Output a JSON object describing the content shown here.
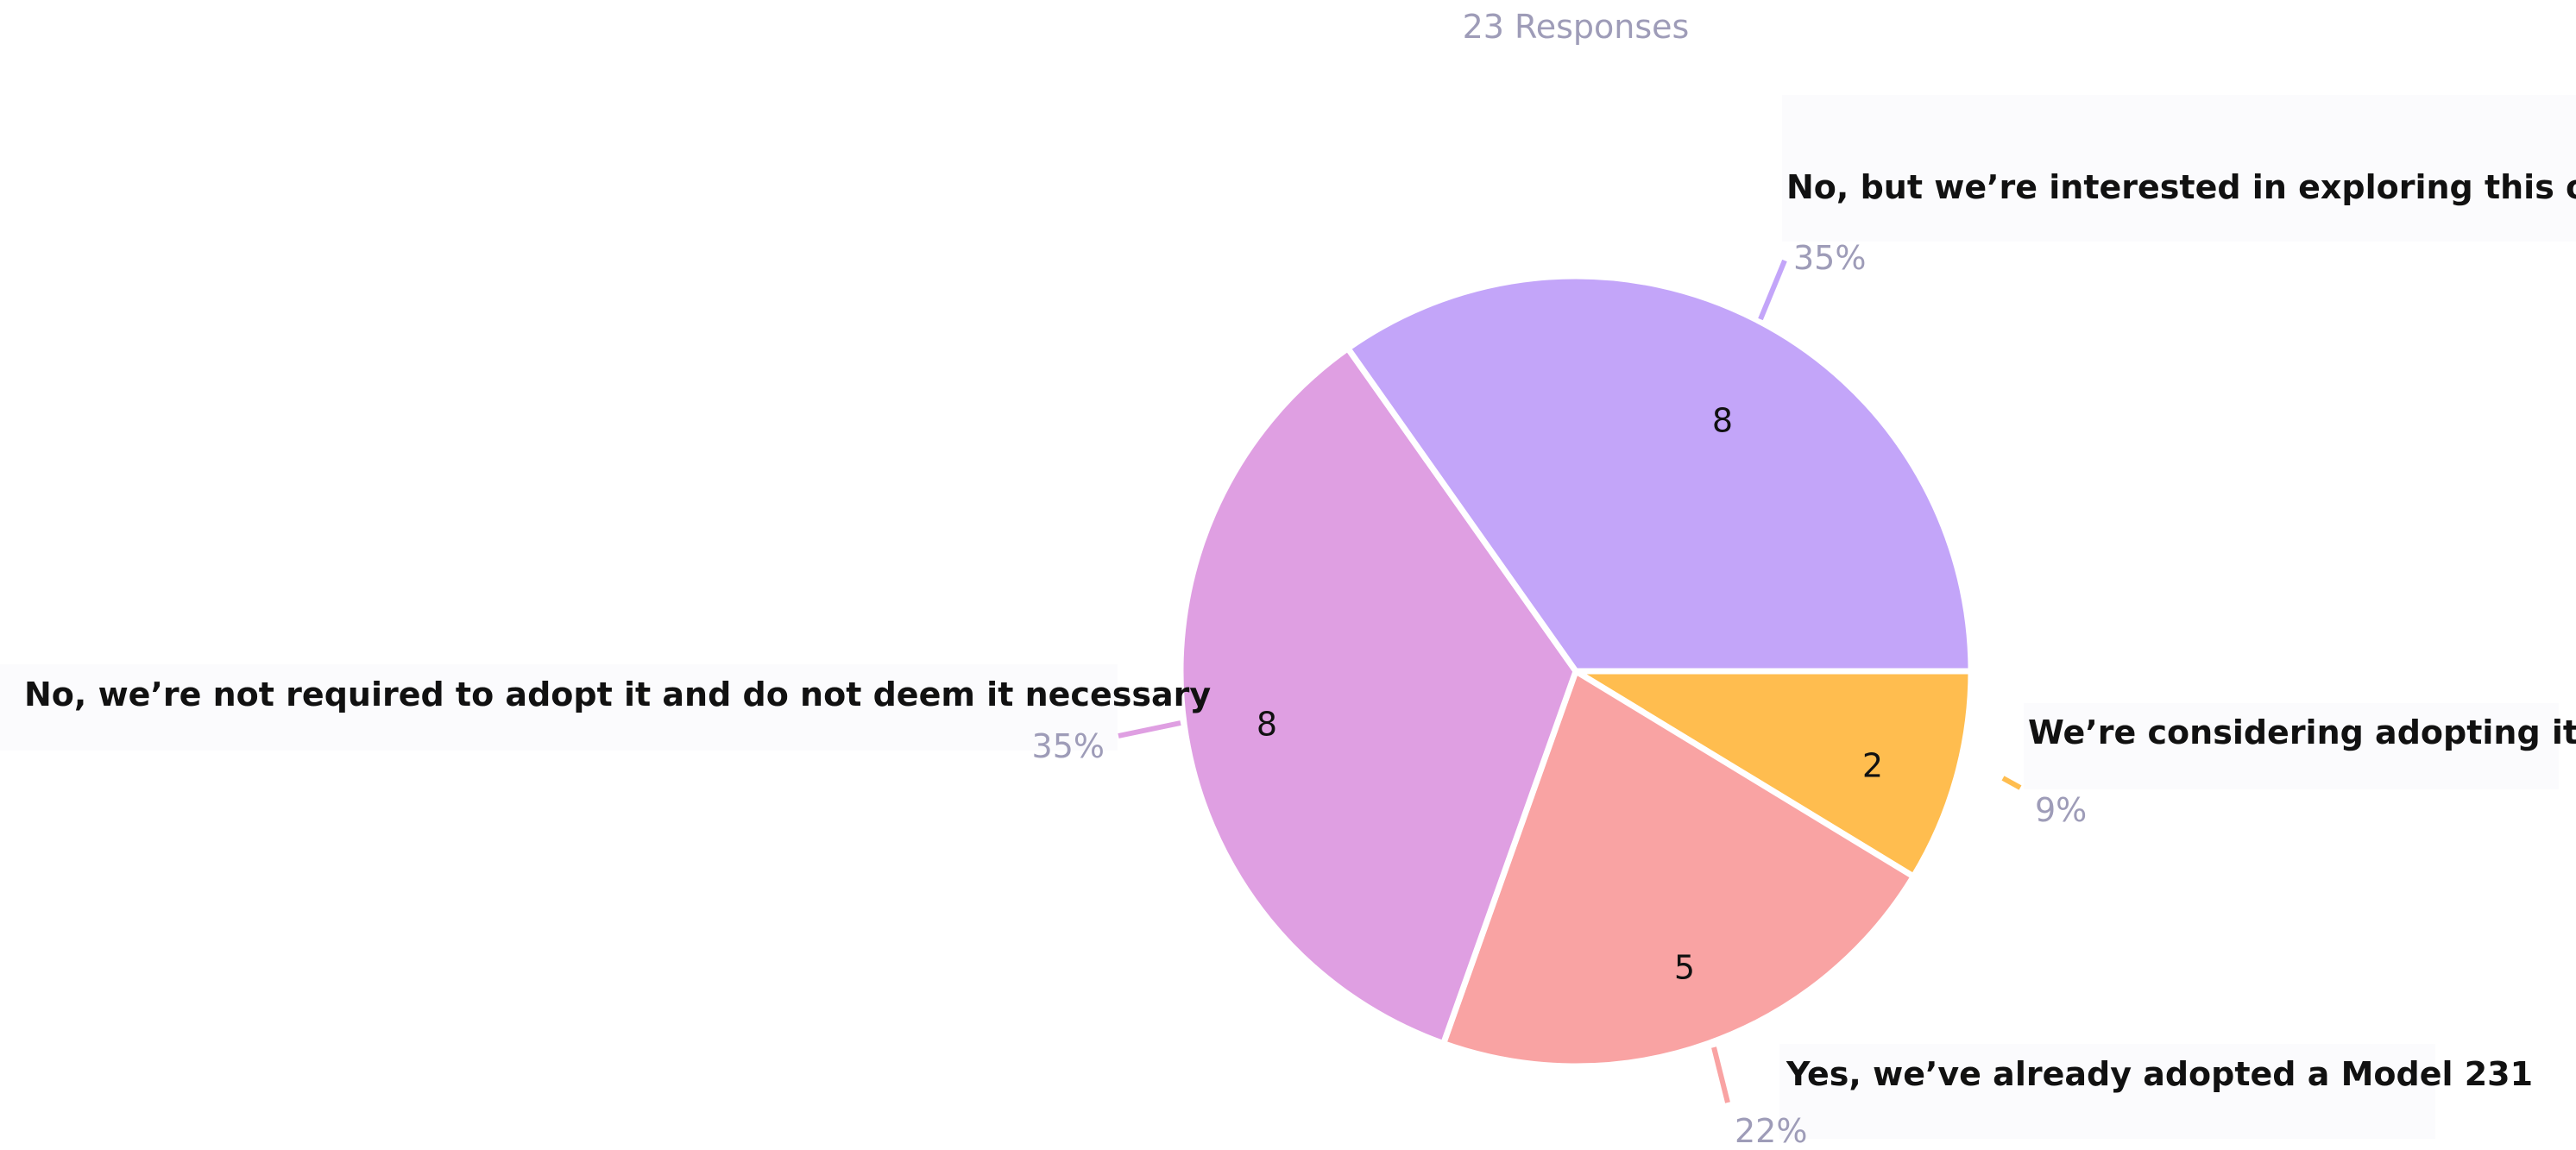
{
  "chart_data": {
    "type": "pie",
    "subtitle": "23 Responses",
    "total": 23,
    "slices": [
      {
        "label": "We’re considering adopting it",
        "value": 2,
        "percent_label": "9%",
        "color": "#ffbd4f"
      },
      {
        "label": "Yes, we’ve already adopted a Model 231",
        "value": 5,
        "percent_label": "22%",
        "color": "#f9a3a3"
      },
      {
        "label": "No, we’re not required to adopt it and do not deem it necessary",
        "value": 8,
        "percent_label": "35%",
        "color": "#df9fe2"
      },
      {
        "label": "No, but we’re interested in exploring this option",
        "value": 8,
        "percent_label": "35%",
        "color": "#c3a5f9"
      }
    ]
  }
}
